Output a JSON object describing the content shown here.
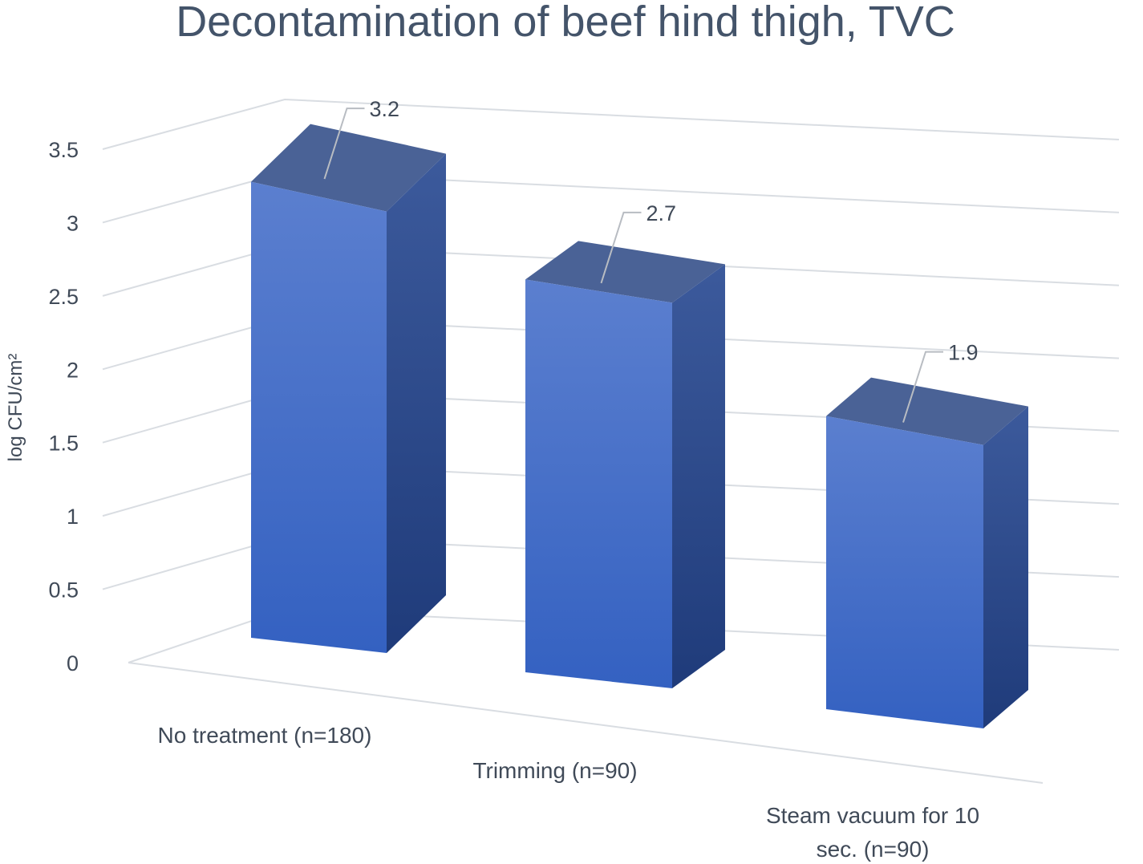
{
  "chart_data": {
    "type": "bar",
    "style": "3d-column",
    "title": "Decontamination of beef hind thigh, TVC",
    "ylabel": "log CFU/cm²",
    "xlabel": "",
    "ylim": [
      0,
      3.5
    ],
    "yticks": [
      "0",
      "0.5",
      "1",
      "1.5",
      "2",
      "2.5",
      "3",
      "3.5"
    ],
    "categories": [
      [
        "No treatment (n=180)"
      ],
      [
        "Trimming (n=90)"
      ],
      [
        "Steam vacuum for 10",
        "sec. (n=90)"
      ]
    ],
    "values": [
      3.2,
      2.7,
      1.9
    ],
    "data_labels": [
      "3.2",
      "2.7",
      "1.9"
    ],
    "grid": true,
    "legend": "none",
    "colors": {
      "bar_front_top": "#5b7fcf",
      "bar_front_bottom": "#3461c1",
      "bar_side_top": "#3c5a9c",
      "bar_side_bottom": "#1f3b7a",
      "bar_top": "#4a6296"
    }
  }
}
